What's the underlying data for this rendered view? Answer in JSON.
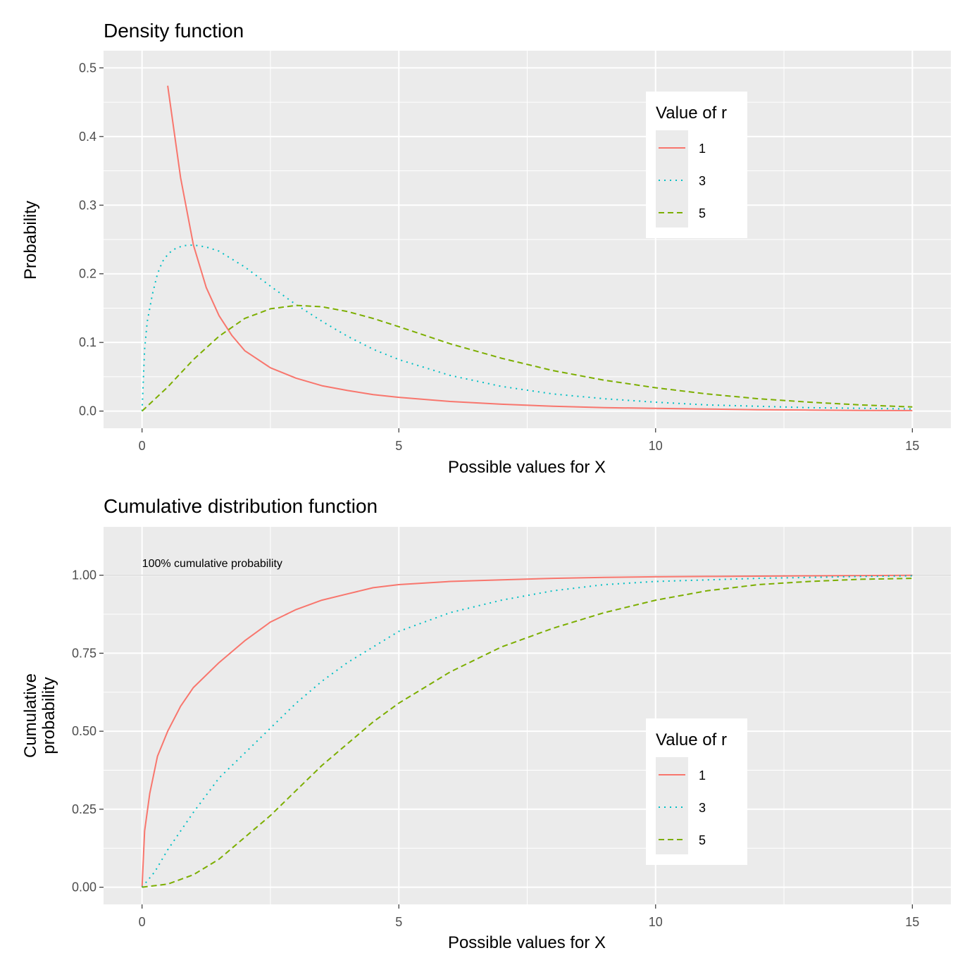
{
  "chart_data": [
    {
      "type": "line",
      "title": "Density function",
      "xlabel": "Possible values for X",
      "ylabel": "Probability",
      "xlim": [
        -0.75,
        15.75
      ],
      "ylim": [
        -0.025,
        0.525
      ],
      "x_ticks": [
        0,
        5,
        10,
        15
      ],
      "x_tick_labels": [
        "0",
        "5",
        "10",
        "15"
      ],
      "y_ticks": [
        0,
        0.1,
        0.2,
        0.3,
        0.4,
        0.5
      ],
      "y_tick_labels": [
        "0.0",
        "0.1",
        "0.2",
        "0.3",
        "0.4",
        "0.5"
      ],
      "grid": true,
      "legend": {
        "title": "Value of r",
        "position": "top-right"
      },
      "series": [
        {
          "name": "1",
          "color": "#F8766D",
          "dash": "solid",
          "x": [
            0.5,
            0.75,
            1,
            1.25,
            1.5,
            1.75,
            2,
            2.5,
            3,
            3.5,
            4,
            4.5,
            5,
            6,
            7,
            8,
            9,
            10,
            11,
            12,
            13,
            14,
            15
          ],
          "y": [
            0.474,
            0.34,
            0.242,
            0.18,
            0.139,
            0.11,
            0.088,
            0.063,
            0.048,
            0.037,
            0.03,
            0.024,
            0.02,
            0.014,
            0.01,
            0.007,
            0.005,
            0.004,
            0.003,
            0.002,
            0.0015,
            0.001,
            0.0008
          ]
        },
        {
          "name": "3",
          "color": "#00BFC4",
          "dash": "dotted",
          "x": [
            0,
            0.05,
            0.1,
            0.2,
            0.3,
            0.4,
            0.5,
            0.6,
            0.8,
            1,
            1.25,
            1.5,
            2,
            2.5,
            3,
            3.5,
            4,
            4.5,
            5,
            6,
            7,
            8,
            9,
            10,
            11,
            12,
            13,
            14,
            15
          ],
          "y": [
            0,
            0.09,
            0.13,
            0.17,
            0.2,
            0.218,
            0.228,
            0.235,
            0.241,
            0.242,
            0.239,
            0.233,
            0.21,
            0.182,
            0.155,
            0.131,
            0.109,
            0.09,
            0.075,
            0.052,
            0.036,
            0.025,
            0.018,
            0.013,
            0.009,
            0.007,
            0.005,
            0.004,
            0.003
          ]
        },
        {
          "name": "5",
          "color": "#7CAE00",
          "dash": "dashed",
          "x": [
            0,
            0.5,
            1,
            1.5,
            2,
            2.5,
            3,
            3.5,
            4,
            4.5,
            5,
            6,
            7,
            8,
            9,
            10,
            11,
            12,
            13,
            14,
            15
          ],
          "y": [
            0,
            0.035,
            0.075,
            0.109,
            0.135,
            0.149,
            0.154,
            0.152,
            0.145,
            0.135,
            0.123,
            0.098,
            0.077,
            0.059,
            0.045,
            0.034,
            0.025,
            0.018,
            0.013,
            0.009,
            0.006
          ]
        }
      ]
    },
    {
      "type": "line",
      "title": "Cumulative distribution function",
      "xlabel": "Possible values for X",
      "ylabel": "Cumulative\nprobability",
      "ylabel_lines": [
        "Cumulative",
        "probability"
      ],
      "xlim": [
        -0.75,
        15.75
      ],
      "ylim": [
        -0.055,
        1.155
      ],
      "x_ticks": [
        0,
        5,
        10,
        15
      ],
      "x_tick_labels": [
        "0",
        "5",
        "10",
        "15"
      ],
      "y_ticks": [
        0,
        0.25,
        0.5,
        0.75,
        1.0
      ],
      "y_tick_labels": [
        "0.00",
        "0.25",
        "0.50",
        "0.75",
        "1.00"
      ],
      "grid": true,
      "reference_line": {
        "y": 1.0,
        "color": "#cccccc"
      },
      "annotation": {
        "text": "100% cumulative probability",
        "x": 0,
        "y": 1.04
      },
      "legend": {
        "title": "Value of r",
        "position": "bottom-right"
      },
      "series": [
        {
          "name": "1",
          "color": "#F8766D",
          "dash": "solid",
          "x": [
            0,
            0.05,
            0.15,
            0.3,
            0.5,
            0.75,
            1,
            1.5,
            2,
            2.5,
            3,
            3.5,
            4,
            4.5,
            5,
            6,
            7,
            8,
            9,
            10,
            11,
            12,
            13,
            14,
            15
          ],
          "y": [
            0,
            0.18,
            0.3,
            0.42,
            0.5,
            0.58,
            0.64,
            0.72,
            0.79,
            0.85,
            0.89,
            0.92,
            0.94,
            0.96,
            0.97,
            0.98,
            0.985,
            0.99,
            0.993,
            0.995,
            0.996,
            0.997,
            0.998,
            0.999,
            1.0
          ]
        },
        {
          "name": "3",
          "color": "#00BFC4",
          "dash": "dotted",
          "x": [
            0,
            0.25,
            0.5,
            1,
            1.5,
            2,
            2.5,
            3,
            3.5,
            4,
            4.5,
            5,
            6,
            7,
            8,
            9,
            10,
            11,
            12,
            13,
            14,
            15
          ],
          "y": [
            0,
            0.05,
            0.12,
            0.24,
            0.35,
            0.43,
            0.51,
            0.59,
            0.66,
            0.72,
            0.77,
            0.82,
            0.88,
            0.92,
            0.95,
            0.97,
            0.98,
            0.985,
            0.99,
            0.993,
            0.996,
            0.998
          ]
        },
        {
          "name": "5",
          "color": "#7CAE00",
          "dash": "dashed",
          "x": [
            0,
            0.5,
            1,
            1.5,
            2,
            2.5,
            3,
            3.5,
            4,
            4.5,
            5,
            6,
            7,
            8,
            9,
            10,
            11,
            12,
            13,
            14,
            15
          ],
          "y": [
            0,
            0.01,
            0.04,
            0.09,
            0.16,
            0.23,
            0.31,
            0.39,
            0.46,
            0.53,
            0.59,
            0.69,
            0.77,
            0.83,
            0.88,
            0.92,
            0.95,
            0.97,
            0.98,
            0.987,
            0.99
          ]
        }
      ]
    }
  ]
}
